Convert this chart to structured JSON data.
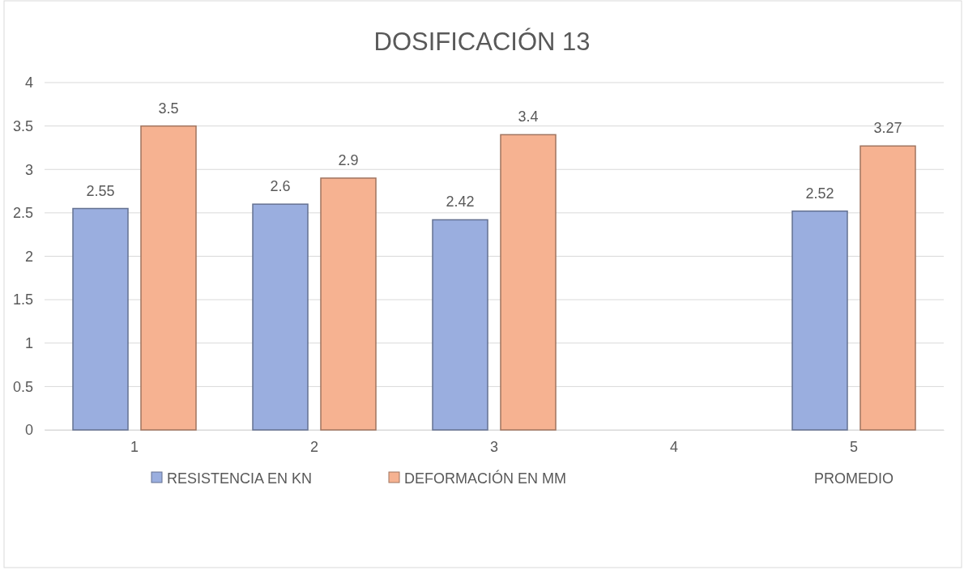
{
  "chart_data": {
    "type": "bar",
    "title": "DOSIFICACIÓN 13",
    "categories": [
      "1",
      "2",
      "3",
      "4",
      "5"
    ],
    "series": [
      {
        "name": "RESISTENCIA EN KN",
        "color": "#9aaedf",
        "values": [
          2.55,
          2.6,
          2.42,
          null,
          2.52
        ]
      },
      {
        "name": "DEFORMACIÓN EN MM",
        "color": "#f6b291",
        "values": [
          3.5,
          2.9,
          3.4,
          null,
          3.27
        ]
      }
    ],
    "annotations": [
      "PROMEDIO"
    ],
    "ylim": [
      0,
      4
    ],
    "yticks": [
      0,
      0.5,
      1,
      1.5,
      2,
      2.5,
      3,
      3.5,
      4
    ],
    "grid": "y",
    "legend": "bottom",
    "data_labels": true
  }
}
